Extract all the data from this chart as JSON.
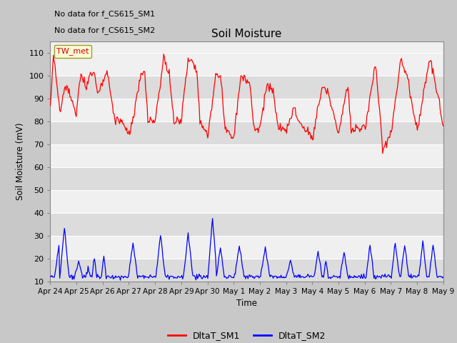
{
  "title": "Soil Moisture",
  "ylabel": "Soil Moisture (mV)",
  "xlabel": "Time",
  "ylim": [
    10,
    115
  ],
  "yticks": [
    10,
    20,
    30,
    40,
    50,
    60,
    70,
    80,
    90,
    100,
    110
  ],
  "no_data_text1": "No data for f_CS615_SM1",
  "no_data_text2": "No data for f_CS615_SM2",
  "tw_met_label": "TW_met",
  "legend_labels": [
    "DltaT_SM1",
    "DltaT_SM2"
  ],
  "sm1_color": "#ff0000",
  "sm2_color": "#0000ff",
  "bg_light": "#f0f0f0",
  "bg_dark": "#dcdcdc",
  "fig_bg": "#c8c8c8",
  "x_tick_labels": [
    "Apr 24",
    "Apr 25",
    "Apr 26",
    "Apr 27",
    "Apr 28",
    "Apr 29",
    "Apr 30",
    "May 1",
    "May 2",
    "May 3",
    "May 4",
    "May 5",
    "May 6",
    "May 7",
    "May 8",
    "May 9"
  ],
  "num_points": 500,
  "grid_color": "#b0b0b0"
}
